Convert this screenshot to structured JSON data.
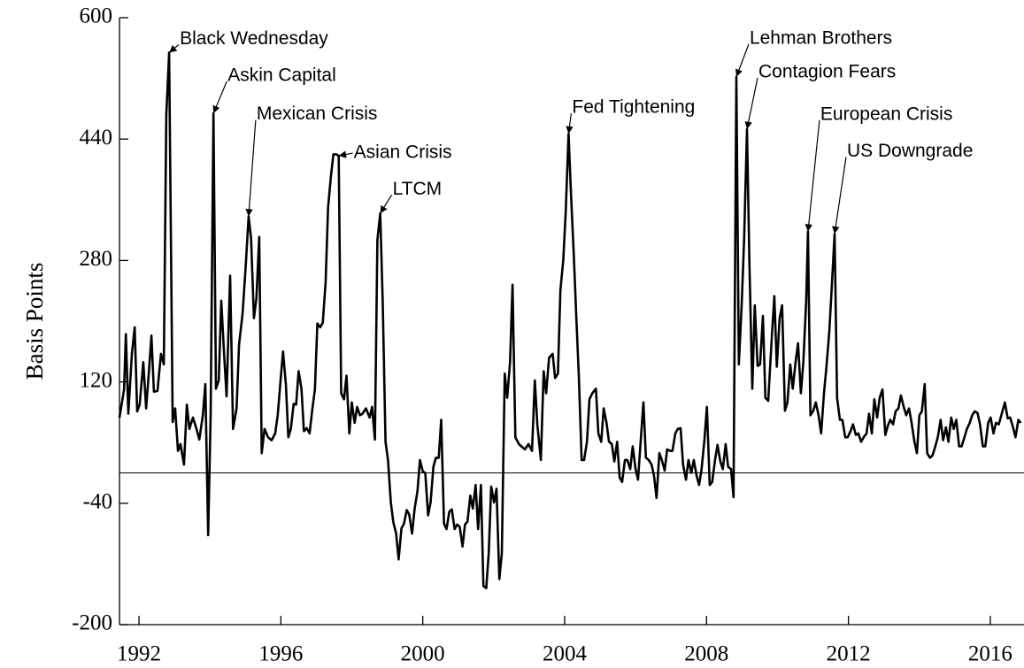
{
  "chart_data": {
    "type": "line",
    "y_label": "Basis Points",
    "xlim": [
      1991.45,
      2016.9
    ],
    "xticks": [
      1992,
      1996,
      2000,
      2004,
      2008,
      2012,
      2016
    ],
    "ylim": [
      -200,
      600
    ],
    "yticks": [
      -200,
      -40,
      120,
      280,
      440,
      600
    ],
    "hline": 0,
    "x": [
      1991.45,
      1991.58,
      1991.63,
      1991.7,
      1991.8,
      1991.88,
      1991.95,
      1992.02,
      1992.12,
      1992.2,
      1992.28,
      1992.35,
      1992.42,
      1992.52,
      1992.62,
      1992.7,
      1992.77,
      1992.85,
      1992.95,
      1993.02,
      1993.1,
      1993.17,
      1993.27,
      1993.35,
      1993.42,
      1993.52,
      1993.62,
      1993.7,
      1993.8,
      1993.87,
      1993.95,
      1994.02,
      1994.1,
      1994.17,
      1994.25,
      1994.32,
      1994.4,
      1994.47,
      1994.57,
      1994.65,
      1994.75,
      1994.82,
      1994.92,
      1995.01,
      1995.09,
      1995.16,
      1995.24,
      1995.31,
      1995.39,
      1995.46,
      1995.54,
      1995.64,
      1995.74,
      1995.84,
      1995.91,
      1995.99,
      1996.06,
      1996.14,
      1996.21,
      1996.28,
      1996.36,
      1996.43,
      1996.5,
      1996.58,
      1996.65,
      1996.73,
      1996.81,
      1996.88,
      1996.96,
      1997.03,
      1997.11,
      1997.18,
      1997.26,
      1997.33,
      1997.41,
      1997.48,
      1997.56,
      1997.63,
      1997.7,
      1997.78,
      1997.85,
      1997.93,
      1998.0,
      1998.08,
      1998.15,
      1998.23,
      1998.3,
      1998.4,
      1998.5,
      1998.57,
      1998.65,
      1998.72,
      1998.8,
      1998.87,
      1998.95,
      1999.02,
      1999.1,
      1999.17,
      1999.25,
      1999.32,
      1999.4,
      1999.47,
      1999.55,
      1999.62,
      1999.7,
      1999.77,
      1999.85,
      1999.92,
      2000.0,
      2000.07,
      2000.15,
      2000.22,
      2000.3,
      2000.37,
      2000.45,
      2000.52,
      2000.6,
      2000.67,
      2000.75,
      2000.82,
      2000.9,
      2000.97,
      2001.04,
      2001.12,
      2001.19,
      2001.26,
      2001.34,
      2001.41,
      2001.49,
      2001.56,
      2001.64,
      2001.71,
      2001.79,
      2001.86,
      2001.93,
      2002.01,
      2002.08,
      2002.16,
      2002.23,
      2002.31,
      2002.38,
      2002.46,
      2002.53,
      2002.61,
      2002.71,
      2002.78,
      2002.88,
      2002.98,
      2003.08,
      2003.16,
      2003.23,
      2003.33,
      2003.41,
      2003.48,
      2003.56,
      2003.66,
      2003.73,
      2003.81,
      2003.88,
      2003.96,
      2004.03,
      2004.11,
      2004.18,
      2004.26,
      2004.33,
      2004.4,
      2004.48,
      2004.55,
      2004.63,
      2004.7,
      2004.78,
      2004.88,
      2004.95,
      2005.03,
      2005.1,
      2005.18,
      2005.25,
      2005.33,
      2005.4,
      2005.48,
      2005.55,
      2005.62,
      2005.7,
      2005.77,
      2005.85,
      2005.92,
      2006.0,
      2006.07,
      2006.15,
      2006.22,
      2006.29,
      2006.37,
      2006.45,
      2006.52,
      2006.59,
      2006.67,
      2006.74,
      2006.82,
      2006.89,
      2006.97,
      2007.04,
      2007.12,
      2007.19,
      2007.27,
      2007.34,
      2007.42,
      2007.49,
      2007.57,
      2007.64,
      2007.72,
      2007.79,
      2007.86,
      2007.94,
      2008.01,
      2008.09,
      2008.16,
      2008.24,
      2008.31,
      2008.39,
      2008.46,
      2008.54,
      2008.61,
      2008.69,
      2008.76,
      2008.84,
      2008.91,
      2008.99,
      2009.06,
      2009.14,
      2009.21,
      2009.29,
      2009.36,
      2009.44,
      2009.51,
      2009.59,
      2009.66,
      2009.74,
      2009.84,
      2009.91,
      2009.98,
      2010.06,
      2010.13,
      2010.21,
      2010.28,
      2010.36,
      2010.43,
      2010.51,
      2010.58,
      2010.66,
      2010.73,
      2010.81,
      2010.86,
      2010.93,
      2011.01,
      2011.08,
      2011.16,
      2011.23,
      2011.31,
      2011.38,
      2011.46,
      2011.53,
      2011.61,
      2011.68,
      2011.76,
      2011.83,
      2011.91,
      2011.98,
      2012.06,
      2012.13,
      2012.21,
      2012.28,
      2012.36,
      2012.43,
      2012.51,
      2012.58,
      2012.66,
      2012.73,
      2012.81,
      2012.88,
      2012.96,
      2013.04,
      2013.11,
      2013.18,
      2013.26,
      2013.33,
      2013.41,
      2013.48,
      2013.56,
      2013.63,
      2013.71,
      2013.78,
      2013.86,
      2013.93,
      2014.0,
      2014.07,
      2014.15,
      2014.22,
      2014.3,
      2014.37,
      2014.45,
      2014.52,
      2014.6,
      2014.67,
      2014.75,
      2014.82,
      2014.9,
      2014.97,
      2015.04,
      2015.12,
      2015.19,
      2015.27,
      2015.34,
      2015.42,
      2015.49,
      2015.56,
      2015.64,
      2015.71,
      2015.79,
      2015.86,
      2015.94,
      2016.01,
      2016.09,
      2016.16,
      2016.24,
      2016.31,
      2016.41,
      2016.49,
      2016.56,
      2016.64,
      2016.71,
      2016.79,
      2016.86
    ],
    "series": [
      {
        "color": "#000000",
        "values": [
          73,
          110,
          183,
          78,
          157,
          192,
          81,
          90,
          146,
          85,
          134,
          181,
          107,
          108,
          157,
          143,
          472,
          554,
          67,
          85,
          29,
          38,
          11,
          90,
          58,
          73,
          58,
          44,
          76,
          117,
          -82,
          76,
          474,
          111,
          122,
          227,
          157,
          101,
          260,
          58,
          85,
          169,
          210,
          274,
          338,
          309,
          204,
          230,
          311,
          26,
          58,
          47,
          43,
          52,
          76,
          122,
          160,
          117,
          47,
          58,
          91,
          90,
          134,
          111,
          55,
          59,
          52,
          81,
          110,
          197,
          192,
          198,
          251,
          350,
          391,
          420,
          420,
          418,
          105,
          97,
          128,
          52,
          93,
          66,
          87,
          76,
          78,
          85,
          73,
          87,
          44,
          307,
          342,
          227,
          41,
          17,
          -39,
          -65,
          -80,
          -114,
          -73,
          -67,
          -49,
          -55,
          -80,
          -47,
          -24,
          17,
          2,
          0,
          -56,
          -39,
          8,
          20,
          20,
          70,
          -67,
          -74,
          -51,
          -48,
          -74,
          -68,
          -71,
          -97,
          -68,
          -64,
          -30,
          -47,
          -16,
          -74,
          -16,
          -149,
          -152,
          -106,
          -18,
          -39,
          -21,
          -140,
          -106,
          131,
          99,
          146,
          248,
          47,
          38,
          35,
          31,
          38,
          29,
          122,
          64,
          17,
          134,
          105,
          152,
          157,
          125,
          131,
          241,
          280,
          344,
          447,
          367,
          285,
          204,
          128,
          17,
          17,
          41,
          97,
          105,
          111,
          52,
          41,
          85,
          66,
          41,
          38,
          15,
          41,
          -6,
          -12,
          17,
          17,
          5,
          35,
          5,
          -9,
          47,
          93,
          20,
          17,
          11,
          -4,
          -33,
          26,
          17,
          3,
          31,
          29,
          29,
          52,
          58,
          59,
          11,
          -9,
          17,
          0,
          17,
          -4,
          -16,
          5,
          43,
          87,
          -16,
          -12,
          17,
          37,
          15,
          5,
          38,
          8,
          5,
          -32,
          522,
          143,
          221,
          309,
          453,
          274,
          111,
          221,
          141,
          143,
          207,
          99,
          95,
          178,
          233,
          140,
          204,
          221,
          82,
          93,
          143,
          111,
          146,
          171,
          105,
          146,
          227,
          318,
          76,
          82,
          93,
          76,
          52,
          105,
          140,
          186,
          245,
          315,
          99,
          70,
          70,
          47,
          47,
          55,
          64,
          50,
          52,
          41,
          47,
          52,
          78,
          52,
          97,
          73,
          99,
          110,
          50,
          62,
          70,
          64,
          81,
          85,
          102,
          87,
          76,
          85,
          66,
          41,
          26,
          76,
          81,
          117,
          26,
          20,
          23,
          35,
          47,
          70,
          43,
          60,
          41,
          73,
          58,
          70,
          35,
          35,
          47,
          58,
          66,
          76,
          81,
          79,
          64,
          35,
          35,
          66,
          73,
          52,
          66,
          64,
          76,
          93,
          72,
          73,
          60,
          47,
          70,
          66
        ]
      }
    ],
    "annotations": [
      {
        "text": "Black Wednesday",
        "x": 1992.85,
        "y": 554
      },
      {
        "text": "Askin Capital",
        "x": 1994.1,
        "y": 474
      },
      {
        "text": "Mexican Crisis",
        "x": 1995.09,
        "y": 338
      },
      {
        "text": "Asian Crisis",
        "x": 1997.63,
        "y": 418
      },
      {
        "text": "LTCM",
        "x": 1998.8,
        "y": 342
      },
      {
        "text": "Fed Tightening",
        "x": 2004.11,
        "y": 447
      },
      {
        "text": "Lehman Brothers",
        "x": 2008.84,
        "y": 522
      },
      {
        "text": "Contagion Fears",
        "x": 2009.14,
        "y": 453
      },
      {
        "text": "European Crisis",
        "x": 2010.86,
        "y": 318
      },
      {
        "text": "US Downgrade",
        "x": 2011.61,
        "y": 315
      }
    ]
  }
}
